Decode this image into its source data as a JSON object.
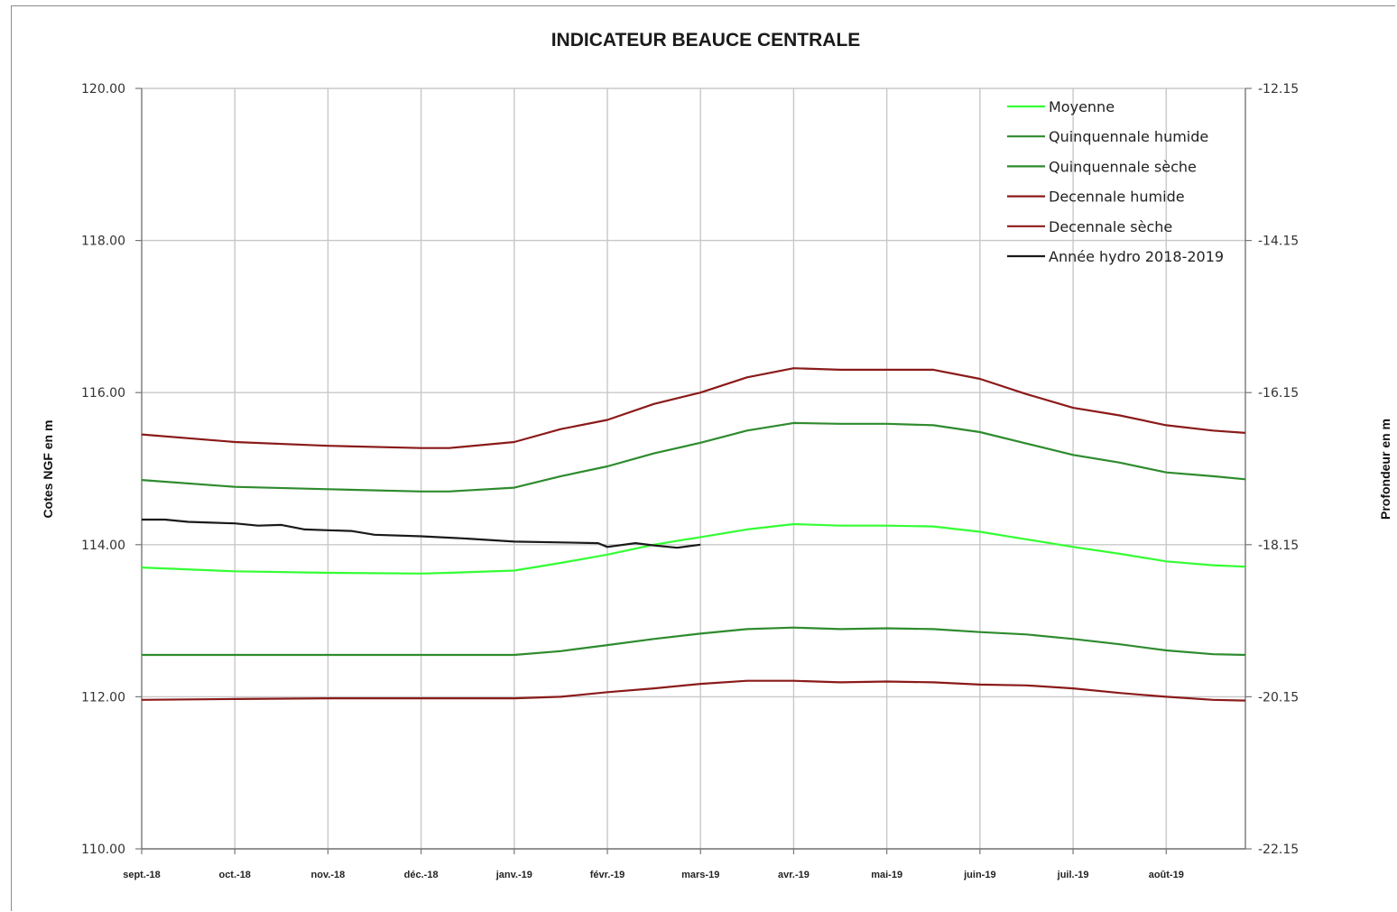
{
  "chart_data": {
    "type": "line",
    "title": "INDICATEUR BEAUCE CENTRALE",
    "ylabel": "Cotes NGF en m",
    "y2label": "Profondeur en m",
    "ylim": [
      110,
      120
    ],
    "y2lim": [
      -22.15,
      -12.15
    ],
    "yticks": [
      "110.00",
      "112.00",
      "114.00",
      "116.00",
      "118.00",
      "120.00"
    ],
    "y2ticks": [
      "-22.15",
      "-20.15",
      "-18.15",
      "-16.15",
      "-14.15",
      "-12.15"
    ],
    "xticks": [
      "sept.-18",
      "oct.-18",
      "nov.-18",
      "déc.-18",
      "janv.-19",
      "févr.-19",
      "mars-19",
      "avr.-19",
      "mai-19",
      "juin-19",
      "juil.-19",
      "août-19"
    ],
    "xlim": [
      0,
      11.85
    ],
    "grid": true,
    "legend_position": "top-right",
    "series": [
      {
        "name": "Moyenne",
        "color": "#33ff33",
        "x": [
          0,
          1,
          2,
          3,
          3.3,
          4,
          4.5,
          5,
          5.5,
          6,
          6.5,
          7,
          7.5,
          8,
          8.5,
          9,
          9.5,
          10,
          10.5,
          11,
          11.5,
          11.85
        ],
        "y": [
          113.7,
          113.65,
          113.63,
          113.62,
          113.63,
          113.66,
          113.76,
          113.87,
          114.0,
          114.1,
          114.2,
          114.27,
          114.25,
          114.25,
          114.24,
          114.17,
          114.07,
          113.97,
          113.88,
          113.78,
          113.73,
          113.71
        ]
      },
      {
        "name": "Quinquennale humide",
        "color": "#2e8b2e",
        "x": [
          0,
          1,
          2,
          3,
          3.3,
          4,
          4.5,
          5,
          5.5,
          6,
          6.5,
          7,
          7.5,
          8,
          8.5,
          9,
          9.5,
          10,
          10.5,
          11,
          11.5,
          11.85
        ],
        "y": [
          114.85,
          114.76,
          114.73,
          114.7,
          114.7,
          114.75,
          114.9,
          115.03,
          115.2,
          115.34,
          115.5,
          115.6,
          115.59,
          115.59,
          115.57,
          115.48,
          115.33,
          115.18,
          115.08,
          114.95,
          114.9,
          114.86
        ]
      },
      {
        "name": "Quinquennale sèche",
        "color": "#2e8b2e",
        "x": [
          0,
          1,
          2,
          3,
          3.3,
          4,
          4.5,
          5,
          5.5,
          6,
          6.5,
          7,
          7.5,
          8,
          8.5,
          9,
          9.5,
          10,
          10.5,
          11,
          11.5,
          11.85
        ],
        "y": [
          112.55,
          112.55,
          112.55,
          112.55,
          112.55,
          112.55,
          112.6,
          112.68,
          112.76,
          112.83,
          112.89,
          112.91,
          112.89,
          112.9,
          112.89,
          112.85,
          112.82,
          112.76,
          112.69,
          112.61,
          112.56,
          112.55
        ]
      },
      {
        "name": "Decennale humide",
        "color": "#8b1a1a",
        "x": [
          0,
          1,
          2,
          3,
          3.3,
          4,
          4.5,
          5,
          5.5,
          6,
          6.5,
          7,
          7.5,
          8,
          8.5,
          9,
          9.5,
          10,
          10.5,
          11,
          11.5,
          11.85
        ],
        "y": [
          115.45,
          115.35,
          115.3,
          115.27,
          115.27,
          115.35,
          115.52,
          115.64,
          115.85,
          116.0,
          116.2,
          116.32,
          116.3,
          116.3,
          116.3,
          116.18,
          115.98,
          115.8,
          115.7,
          115.57,
          115.5,
          115.47
        ]
      },
      {
        "name": "Decennale sèche",
        "color": "#8b1a1a",
        "x": [
          0,
          1,
          2,
          3,
          3.3,
          4,
          4.5,
          5,
          5.5,
          6,
          6.5,
          7,
          7.5,
          8,
          8.5,
          9,
          9.5,
          10,
          10.5,
          11,
          11.5,
          11.85
        ],
        "y": [
          111.96,
          111.97,
          111.98,
          111.98,
          111.98,
          111.98,
          112.0,
          112.06,
          112.11,
          112.17,
          112.21,
          112.21,
          112.19,
          112.2,
          112.19,
          112.16,
          112.15,
          112.11,
          112.05,
          112.0,
          111.96,
          111.95
        ]
      },
      {
        "name": "Année hydro 2018-2019",
        "color": "#1a1a1a",
        "x": [
          0,
          0.25,
          0.5,
          0.75,
          1.0,
          1.25,
          1.5,
          1.75,
          2.0,
          2.25,
          2.5,
          3.0,
          3.5,
          4.0,
          4.5,
          4.9,
          5.0,
          5.3,
          5.5,
          5.75,
          6.0
        ],
        "y": [
          114.33,
          114.33,
          114.3,
          114.29,
          114.28,
          114.25,
          114.26,
          114.2,
          114.19,
          114.18,
          114.13,
          114.11,
          114.08,
          114.04,
          114.03,
          114.02,
          113.97,
          114.02,
          113.99,
          113.96,
          114.0
        ]
      }
    ]
  }
}
